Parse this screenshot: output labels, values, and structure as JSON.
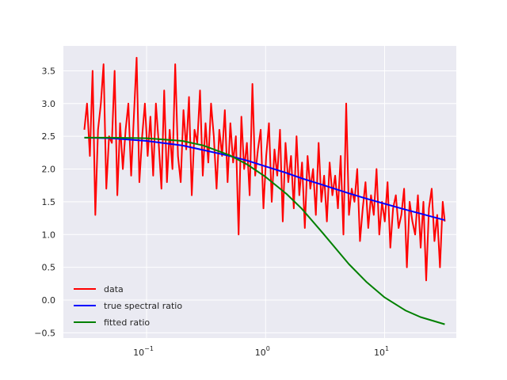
{
  "chart_data": {
    "type": "line",
    "title": "",
    "xlabel": "",
    "ylabel": "",
    "xscale": "log",
    "xlim": [
      0.02,
      40
    ],
    "ylim": [
      -0.58,
      3.88
    ],
    "grid": true,
    "legend_position": "lower-left",
    "background": "#eaeaf2",
    "x_ticks": [
      {
        "value": 0.1,
        "base": "10",
        "exp": "−1"
      },
      {
        "value": 1,
        "base": "10",
        "exp": "0"
      },
      {
        "value": 10,
        "base": "10",
        "exp": "1"
      }
    ],
    "y_ticks": [
      {
        "value": -0.5,
        "label": "−0.5"
      },
      {
        "value": 0.0,
        "label": "0.0"
      },
      {
        "value": 0.5,
        "label": "0.5"
      },
      {
        "value": 1.0,
        "label": "1.0"
      },
      {
        "value": 1.5,
        "label": "1.5"
      },
      {
        "value": 2.0,
        "label": "2.0"
      },
      {
        "value": 2.5,
        "label": "2.5"
      },
      {
        "value": 3.0,
        "label": "3.0"
      },
      {
        "value": 3.5,
        "label": "3.5"
      }
    ],
    "series": [
      {
        "name": "data",
        "color": "#ff0000",
        "x": [
          0.03,
          0.0316,
          0.0334,
          0.0352,
          0.0371,
          0.0391,
          0.0413,
          0.0435,
          0.0459,
          0.0484,
          0.0511,
          0.0539,
          0.0568,
          0.0599,
          0.0632,
          0.0667,
          0.0703,
          0.0742,
          0.0782,
          0.0825,
          0.087,
          0.0918,
          0.0968,
          0.1021,
          0.1077,
          0.1136,
          0.1198,
          0.1264,
          0.1333,
          0.1406,
          0.1483,
          0.1564,
          0.165,
          0.174,
          0.1836,
          0.1936,
          0.2042,
          0.2154,
          0.2272,
          0.2397,
          0.2528,
          0.2666,
          0.2812,
          0.2966,
          0.3129,
          0.33,
          0.3481,
          0.3672,
          0.3873,
          0.4085,
          0.4309,
          0.4545,
          0.4794,
          0.5057,
          0.5334,
          0.5626,
          0.5934,
          0.626,
          0.6603,
          0.6965,
          0.7346,
          0.7749,
          0.8173,
          0.8621,
          0.9094,
          0.9592,
          1.0118,
          1.0672,
          1.1257,
          1.1874,
          1.2525,
          1.3211,
          1.3935,
          1.4699,
          1.5504,
          1.6354,
          1.725,
          1.8195,
          1.9193,
          2.0244,
          2.1354,
          2.2524,
          2.3759,
          2.5061,
          2.6434,
          2.7883,
          2.9411,
          3.1022,
          3.2723,
          3.4516,
          3.6407,
          3.8402,
          4.0507,
          4.2727,
          4.5068,
          4.7538,
          5.0143,
          5.2891,
          5.579,
          5.8847,
          6.2072,
          6.5474,
          6.9062,
          7.2846,
          7.6839,
          8.105,
          8.5491,
          9.0176,
          9.5118,
          10.033,
          10.583,
          11.163,
          11.775,
          12.42,
          13.101,
          13.819,
          14.576,
          15.375,
          16.217,
          17.106,
          18.044,
          19.032,
          20.075,
          21.176,
          22.336,
          23.56,
          24.851,
          26.213,
          27.65,
          29.165,
          30.763,
          32.0
        ],
        "y": [
          2.6,
          3.0,
          2.2,
          3.5,
          1.3,
          2.6,
          3.0,
          3.6,
          1.7,
          2.5,
          2.4,
          3.5,
          1.6,
          2.7,
          2.0,
          2.6,
          3.0,
          1.9,
          2.8,
          3.7,
          1.8,
          2.5,
          3.0,
          2.2,
          2.8,
          1.9,
          3.0,
          2.4,
          1.7,
          3.2,
          1.8,
          2.6,
          2.0,
          3.6,
          2.2,
          1.8,
          2.9,
          2.3,
          3.1,
          1.6,
          2.6,
          2.4,
          3.2,
          1.9,
          2.7,
          2.1,
          3.0,
          2.5,
          1.7,
          2.6,
          2.2,
          2.9,
          1.8,
          2.7,
          2.1,
          2.5,
          1.0,
          2.8,
          2.0,
          2.4,
          1.6,
          3.3,
          1.9,
          2.3,
          2.6,
          1.4,
          2.2,
          2.7,
          1.5,
          2.3,
          1.9,
          2.6,
          1.2,
          2.4,
          1.8,
          2.2,
          1.4,
          2.5,
          1.6,
          2.1,
          1.1,
          2.2,
          1.7,
          2.0,
          1.3,
          2.4,
          1.5,
          1.9,
          1.2,
          2.1,
          1.6,
          1.9,
          1.4,
          2.2,
          1.0,
          3.0,
          1.3,
          1.7,
          1.5,
          2.0,
          0.9,
          1.4,
          1.8,
          1.1,
          1.6,
          1.3,
          2.0,
          1.0,
          1.5,
          1.2,
          1.8,
          0.8,
          1.4,
          1.6,
          1.1,
          1.3,
          1.7,
          0.5,
          1.5,
          1.2,
          1.0,
          1.6,
          0.8,
          1.5,
          0.3,
          1.4,
          1.7,
          0.9,
          1.3,
          0.5,
          1.5,
          1.2
        ]
      },
      {
        "name": "true spectral ratio",
        "color": "#0000ff",
        "x": [
          0.03,
          0.05,
          0.1,
          0.2,
          0.3,
          0.5,
          0.7,
          1.0,
          1.5,
          2.0,
          3.0,
          5.0,
          7.0,
          10.0,
          15.0,
          20.0,
          32.0
        ],
        "y": [
          2.48,
          2.47,
          2.43,
          2.36,
          2.29,
          2.2,
          2.13,
          2.04,
          1.94,
          1.86,
          1.76,
          1.63,
          1.55,
          1.47,
          1.38,
          1.32,
          1.22
        ]
      },
      {
        "name": "fitted ratio",
        "color": "#008000",
        "x": [
          0.03,
          0.05,
          0.1,
          0.2,
          0.3,
          0.5,
          0.7,
          1.0,
          1.5,
          2.0,
          3.0,
          5.0,
          7.0,
          10.0,
          15.0,
          20.0,
          32.0
        ],
        "y": [
          2.48,
          2.48,
          2.47,
          2.43,
          2.36,
          2.21,
          2.07,
          1.88,
          1.62,
          1.4,
          1.03,
          0.55,
          0.28,
          0.04,
          -0.16,
          -0.26,
          -0.37
        ]
      }
    ]
  }
}
